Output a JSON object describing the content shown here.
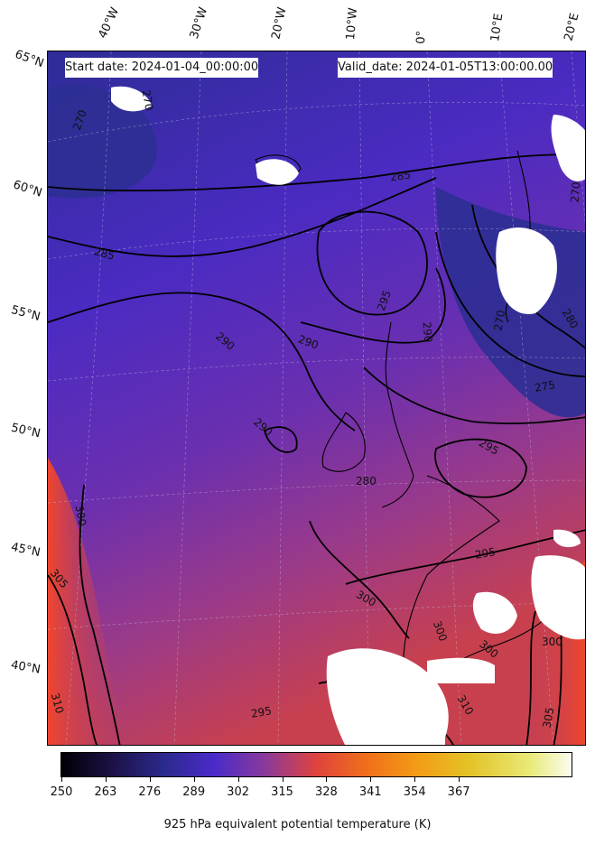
{
  "header": {
    "start_date": "Start date: 2024-01-04_00:00:00",
    "valid_date": "Valid_date: 2024-01-05T13:00:00.00"
  },
  "longitude_labels": [
    "40°W",
    "30°W",
    "20°W",
    "10°W",
    "0°",
    "10°E",
    "20°E"
  ],
  "latitude_labels": [
    "65°N",
    "60°N",
    "55°N",
    "50°N",
    "45°N",
    "40°N"
  ],
  "contour_labels": [
    "270",
    "270",
    "285",
    "285",
    "295",
    "290",
    "290",
    "290",
    "295",
    "290",
    "300",
    "305",
    "295",
    "300",
    "300",
    "300",
    "310",
    "310",
    "305",
    "300",
    "295",
    "280",
    "275",
    "270",
    "270",
    "280"
  ],
  "colorbar": {
    "ticks": [
      "250",
      "263",
      "276",
      "289",
      "302",
      "315",
      "328",
      "341",
      "354",
      "367"
    ],
    "label": "925 hPa equivalent potential temperature (K)"
  },
  "colors": {
    "cold": "#2a2a8a",
    "mid": "#4b2bc8",
    "warm": "#e0433e",
    "contour": "#000000",
    "masked": "#ffffff"
  }
}
